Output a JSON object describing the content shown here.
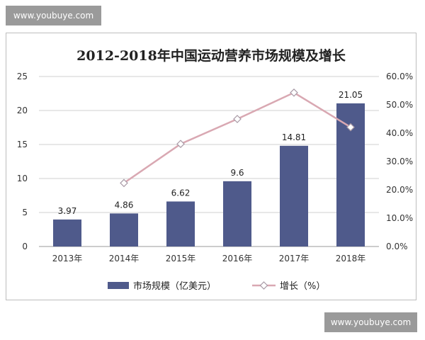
{
  "watermark": {
    "top": "www.youbuye.com",
    "bottom": "www.youbuye.com"
  },
  "colors": {
    "bar": "#4f5a8b",
    "line": "#d9a8b2",
    "grid": "#d0d0d0",
    "marker_fill": "#ffffff"
  },
  "chart_data": {
    "type": "bar",
    "title": "2012-2018年中国运动营养市场规模及增长",
    "categories": [
      "2013年",
      "2014年",
      "2015年",
      "2016年",
      "2017年",
      "2018年"
    ],
    "series": [
      {
        "name": "市场规模（亿美元）",
        "type": "bar",
        "axis": "left",
        "values": [
          3.97,
          4.86,
          6.62,
          9.6,
          14.81,
          21.05
        ],
        "labels": [
          "3.97",
          "4.86",
          "6.62",
          "9.6",
          "14.81",
          "21.05"
        ]
      },
      {
        "name": "增长（%）",
        "type": "line",
        "axis": "right",
        "values": [
          null,
          22.4,
          36.2,
          45.0,
          54.3,
          42.1
        ]
      }
    ],
    "y_left": {
      "lim": [
        0,
        25
      ],
      "ticks": [
        "0",
        "5",
        "10",
        "15",
        "20",
        "25"
      ]
    },
    "y_right": {
      "lim": [
        0,
        60
      ],
      "ticks": [
        "0.0%",
        "10.0%",
        "20.0%",
        "30.0%",
        "40.0%",
        "50.0%",
        "60.0%"
      ]
    },
    "grid": true,
    "legend": "bottom"
  }
}
